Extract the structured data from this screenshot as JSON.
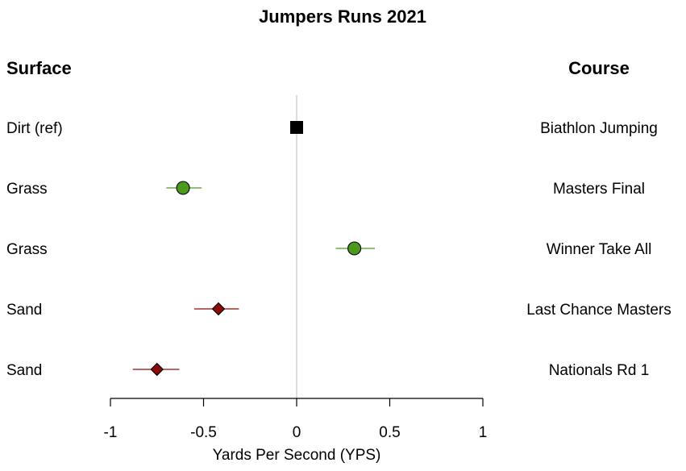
{
  "chart_data": {
    "type": "forest-plot",
    "title": "Jumpers Runs 2021",
    "xlabel": "Yards Per Second (YPS)",
    "left_header": "Surface",
    "right_header": "Course",
    "xlim": [
      -1,
      1
    ],
    "xticks": [
      -1,
      -0.5,
      0,
      0.5,
      1
    ],
    "xtick_labels": [
      "-1",
      "-0.5",
      "0",
      "0.5",
      "1"
    ],
    "reference_line": 0,
    "rows": [
      {
        "surface": "Dirt (ref)",
        "course": "Biathlon Jumping",
        "estimate": 0,
        "ci_low": 0,
        "ci_high": 0,
        "marker": "square",
        "color": "#000000"
      },
      {
        "surface": "Grass",
        "course": "Masters Final",
        "estimate": -0.61,
        "ci_low": -0.7,
        "ci_high": -0.51,
        "marker": "circle",
        "color": "#4a9a1e"
      },
      {
        "surface": "Grass",
        "course": "Winner Take All",
        "estimate": 0.31,
        "ci_low": 0.21,
        "ci_high": 0.42,
        "marker": "circle",
        "color": "#4a9a1e"
      },
      {
        "surface": "Sand",
        "course": "Last Chance Masters",
        "estimate": -0.42,
        "ci_low": -0.55,
        "ci_high": -0.31,
        "marker": "diamond",
        "color": "#8b0a0a"
      },
      {
        "surface": "Sand",
        "course": "Nationals Rd 1",
        "estimate": -0.75,
        "ci_low": -0.88,
        "ci_high": -0.63,
        "marker": "diamond",
        "color": "#8b0a0a"
      }
    ]
  }
}
